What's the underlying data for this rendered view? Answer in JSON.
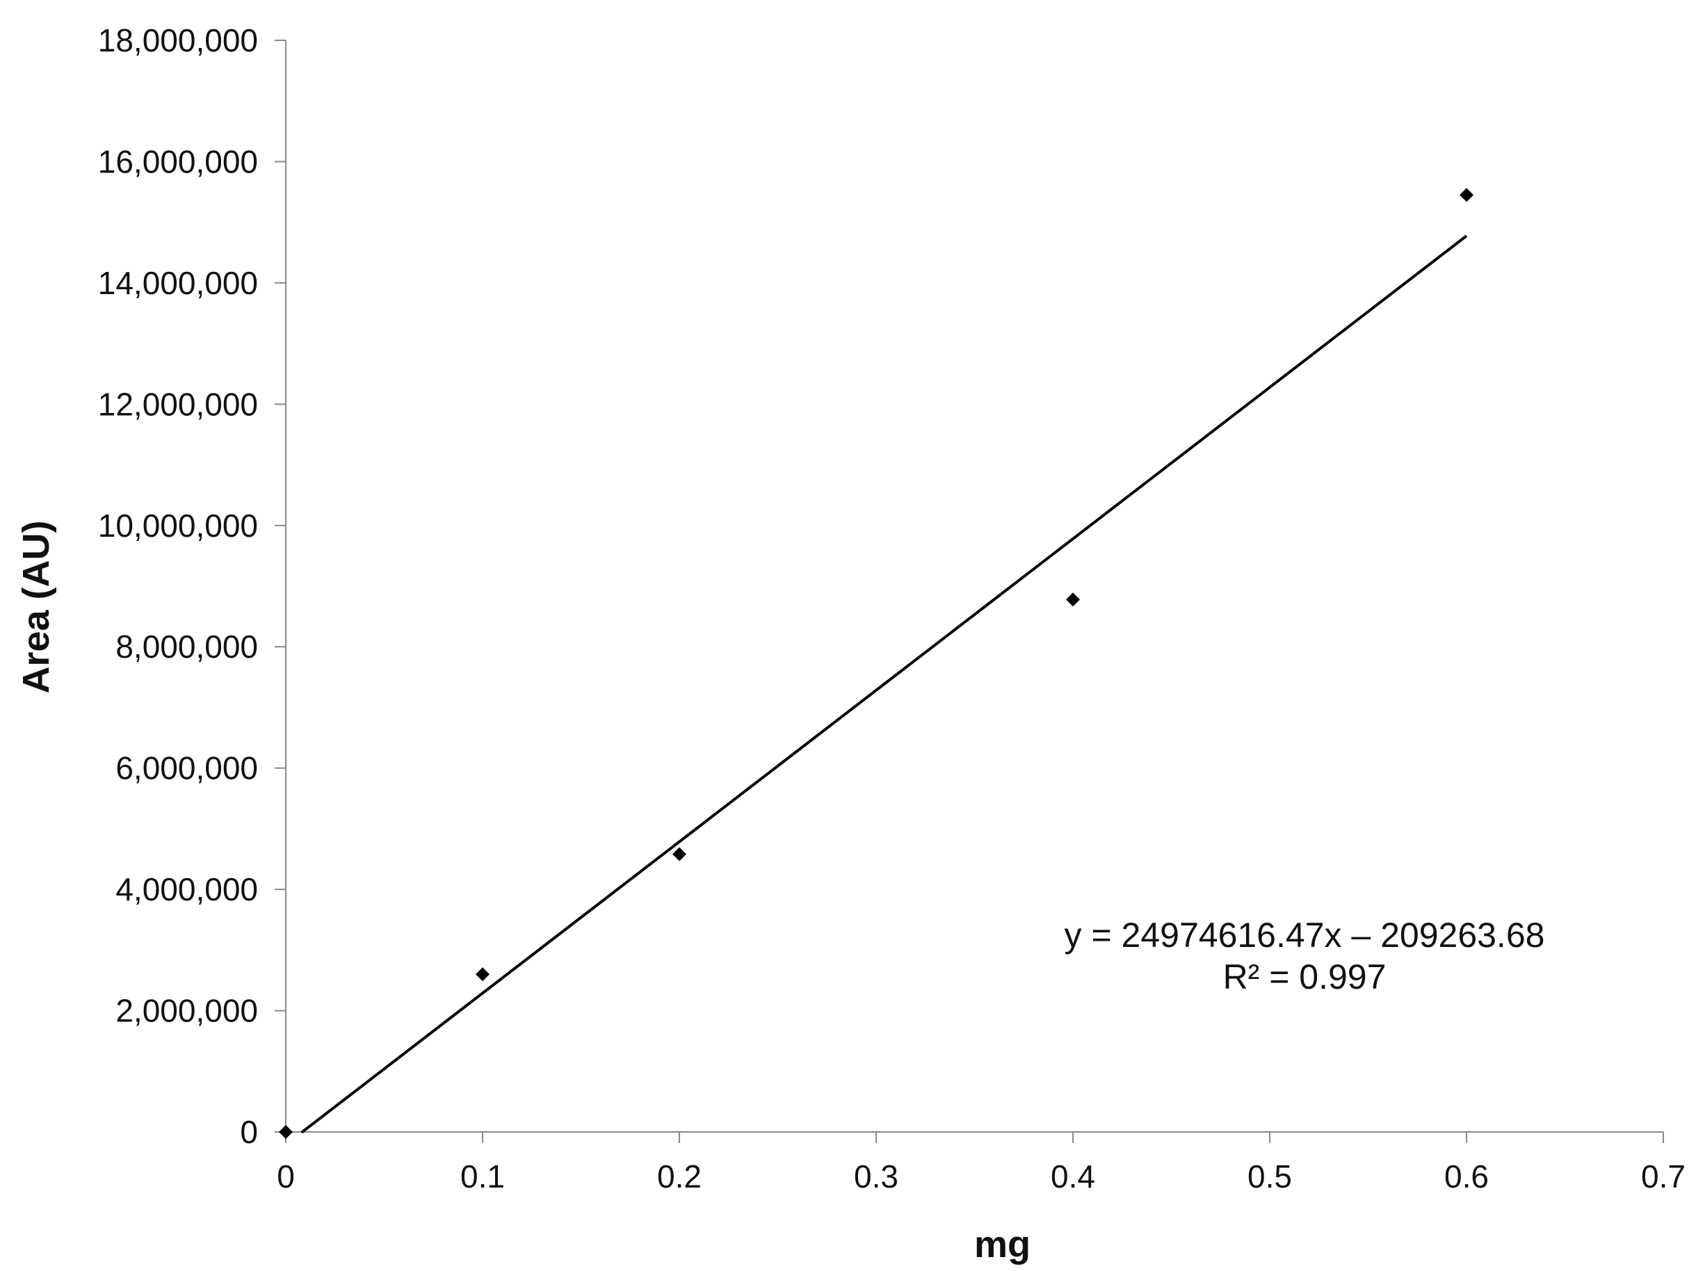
{
  "chart_data": {
    "type": "scatter",
    "title": "",
    "xlabel": "mg",
    "ylabel": "Area (AU)",
    "xlim": [
      0,
      0.7
    ],
    "ylim": [
      0,
      18000000
    ],
    "x_ticks": [
      0,
      0.1,
      0.2,
      0.3,
      0.4,
      0.5,
      0.6,
      0.7
    ],
    "x_tick_labels": [
      "0",
      "0.1",
      "0.2",
      "0.3",
      "0.4",
      "0.5",
      "0.6",
      "0.7"
    ],
    "y_ticks": [
      0,
      2000000,
      4000000,
      6000000,
      8000000,
      10000000,
      12000000,
      14000000,
      16000000,
      18000000
    ],
    "y_tick_labels": [
      "0",
      "2,000,000",
      "4,000,000",
      "6,000,000",
      "8,000,000",
      "10,000,000",
      "12,000,000",
      "14,000,000",
      "16,000,000",
      "18,000,000"
    ],
    "grid": false,
    "legend": "none",
    "series": [
      {
        "marker": "diamond",
        "color": "#000000",
        "x": [
          0,
          0.1,
          0.2,
          0.4,
          0.6
        ],
        "y": [
          0,
          2600000,
          4580000,
          8780000,
          15450000
        ]
      }
    ],
    "trendline": {
      "type": "linear",
      "slope": 24974616.47,
      "intercept": -209263.68,
      "x_range": [
        0.008,
        0.6
      ],
      "color": "#000000"
    },
    "annotations": {
      "equation": "y = 24974616.47x – 209263.68",
      "r_squared": "R² = 0.997"
    }
  }
}
